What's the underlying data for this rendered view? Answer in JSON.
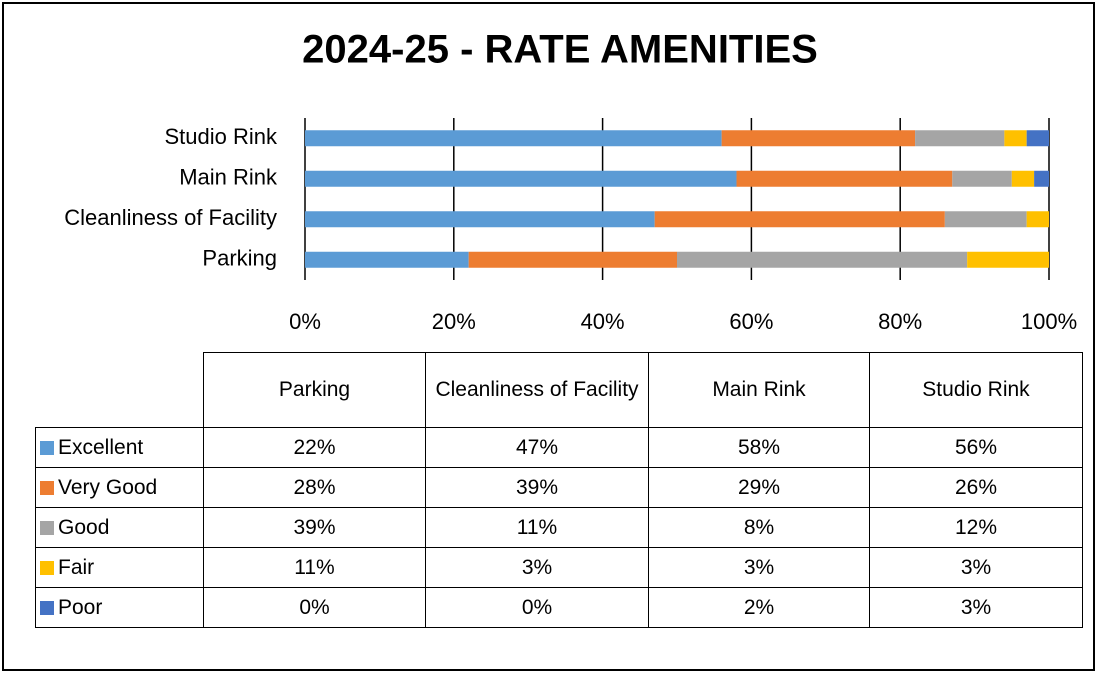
{
  "chart_data": {
    "type": "stacked-bar-horizontal",
    "title": "2024-25 - RATE AMENITIES",
    "categories": [
      "Parking",
      "Cleanliness of Facility",
      "Main Rink",
      "Studio Rink"
    ],
    "series": [
      {
        "name": "Excellent",
        "color": "#5b9bd5",
        "values": [
          22,
          47,
          58,
          56
        ],
        "value_labels": [
          "22%",
          "47%",
          "58%",
          "56%"
        ]
      },
      {
        "name": "Very Good",
        "color": "#ed7d31",
        "values": [
          28,
          39,
          29,
          26
        ],
        "value_labels": [
          "28%",
          "39%",
          "29%",
          "26%"
        ]
      },
      {
        "name": "Good",
        "color": "#a5a5a5",
        "values": [
          39,
          11,
          8,
          12
        ],
        "value_labels": [
          "39%",
          "11%",
          "8%",
          "12%"
        ]
      },
      {
        "name": "Fair",
        "color": "#ffc000",
        "values": [
          11,
          3,
          3,
          3
        ],
        "value_labels": [
          "11%",
          "3%",
          "3%",
          "3%"
        ]
      },
      {
        "name": "Poor",
        "color": "#4472c4",
        "values": [
          0,
          0,
          2,
          3
        ],
        "value_labels": [
          "0%",
          "0%",
          "2%",
          "3%"
        ]
      }
    ],
    "xlim": [
      0,
      100
    ],
    "xticks": [
      {
        "value": 0,
        "label": "0%"
      },
      {
        "value": 20,
        "label": "20%"
      },
      {
        "value": 40,
        "label": "40%"
      },
      {
        "value": 60,
        "label": "60%"
      },
      {
        "value": 80,
        "label": "80%"
      },
      {
        "value": 100,
        "label": "100%"
      }
    ],
    "grid": true,
    "legend": "table"
  }
}
